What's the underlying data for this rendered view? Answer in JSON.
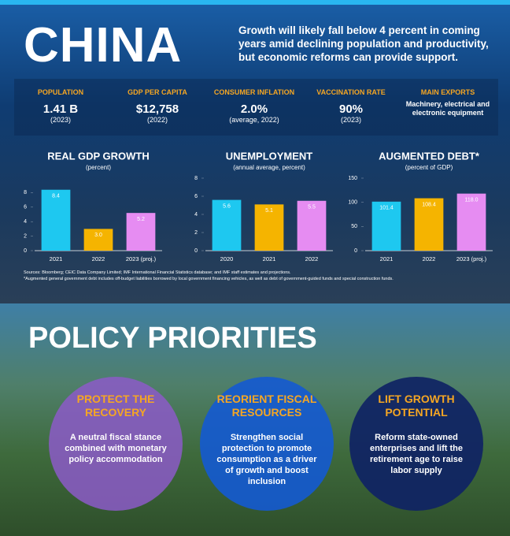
{
  "header": {
    "title": "CHINA",
    "lead": "Growth will likely fall below 4 percent in coming years amid declining population and productivity, but economic reforms can provide support."
  },
  "stats": [
    {
      "label": "POPULATION",
      "value": "1.41 B",
      "note": "(2023)"
    },
    {
      "label": "GDP PER CAPITA",
      "value": "$12,758",
      "note": "(2022)"
    },
    {
      "label": "CONSUMER INFLATION",
      "value": "2.0%",
      "note": "(average, 2022)"
    },
    {
      "label": "VACCINATION RATE",
      "value": "90%",
      "note": "(2023)"
    },
    {
      "label": "MAIN EXPORTS",
      "value": "Machinery, electrical and electronic equipment"
    }
  ],
  "chart_data": [
    {
      "type": "bar",
      "title": "REAL GDP GROWTH",
      "subtitle": "(percent)",
      "categories": [
        "2021",
        "2022",
        "2023 (proj.)"
      ],
      "values": [
        8.4,
        3.0,
        5.2
      ],
      "value_labels": [
        "8.4",
        "3.0",
        "5.2"
      ],
      "colors": [
        "#1ec8f0",
        "#f5b400",
        "#e68cf2"
      ],
      "ylim": [
        0,
        10
      ],
      "yticks": [
        0,
        2,
        4,
        6,
        8
      ]
    },
    {
      "type": "bar",
      "title": "UNEMPLOYMENT",
      "subtitle": "(annual average, percent)",
      "categories": [
        "2020",
        "2021",
        "2022"
      ],
      "values": [
        5.6,
        5.1,
        5.5
      ],
      "colors": [
        "#1ec8f0",
        "#f5b400",
        "#e68cf2"
      ],
      "ylim": [
        0,
        8
      ],
      "yticks": [
        0,
        2,
        4,
        6,
        8
      ]
    },
    {
      "type": "bar",
      "title": "AUGMENTED DEBT*",
      "subtitle": "(percent of GDP)",
      "categories": [
        "2021",
        "2022",
        "2023 (proj.)"
      ],
      "values": [
        101.4,
        108.4,
        118.0
      ],
      "value_labels": [
        "101.4",
        "108.4",
        "118.0"
      ],
      "colors": [
        "#1ec8f0",
        "#f5b400",
        "#e68cf2"
      ],
      "ylim": [
        0,
        150
      ],
      "yticks": [
        0,
        50,
        100,
        150
      ]
    }
  ],
  "sources": [
    "Sources: Bloomberg; CEIC Data Company Limited; IMF International Financial Statistics database; and IMF staff estimates and projections.",
    "*Augmented general government debt includes off-budget liabilities borrowed by local government financing vehicles, as well as debt of government-guided funds and special construction funds."
  ],
  "policy": {
    "title": "POLICY PRIORITIES",
    "items": [
      {
        "heading": "PROTECT THE RECOVERY",
        "text": "A neutral fiscal stance combined with monetary policy accommodation"
      },
      {
        "heading": "REORIENT FISCAL RESOURCES",
        "text": "Strengthen social protection to promote consumption as a driver of growth and boost inclusion"
      },
      {
        "heading": "LIFT GROWTH POTENTIAL",
        "text": "Reform state-owned enterprises and lift the retirement age to raise labor supply"
      }
    ]
  }
}
